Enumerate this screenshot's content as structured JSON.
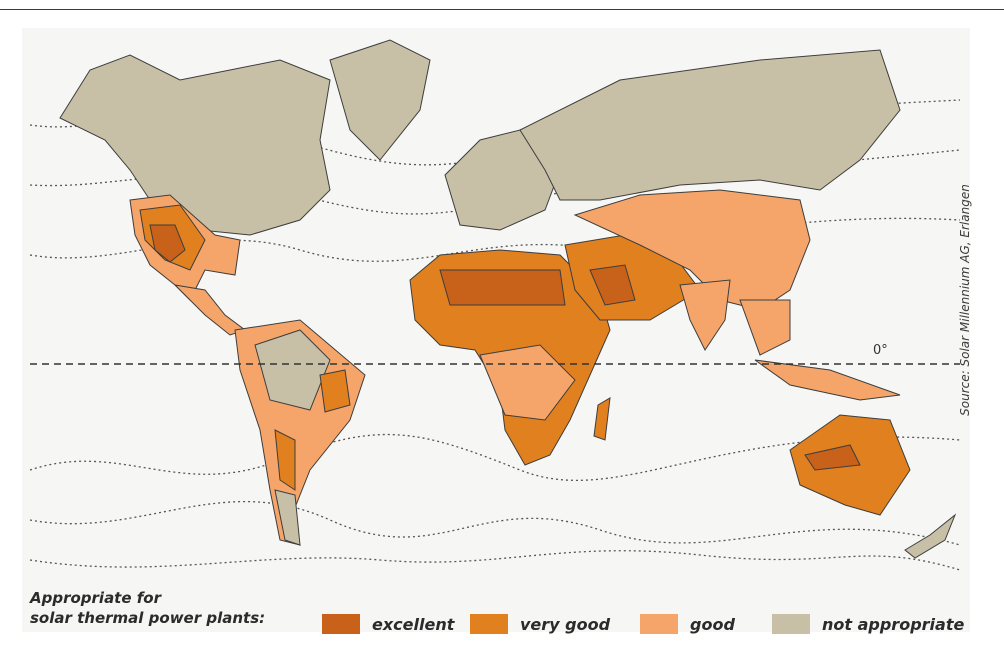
{
  "source_credit": "Source: Solar Millennium AG, Erlangen",
  "equator_label": "0°",
  "legend": {
    "title_line1": "Appropriate for",
    "title_line2": "solar thermal power plants:",
    "items": [
      {
        "label": "excellent",
        "color": "#c8611a"
      },
      {
        "label": "very good",
        "color": "#e0801f"
      },
      {
        "label": "good",
        "color": "#f5a56a"
      },
      {
        "label": "not appropriate",
        "color": "#c8c0a6"
      }
    ]
  },
  "colors": {
    "ocean": "#f6f6f4",
    "border": "#3d3d3d",
    "dotted_lines": "#555555"
  }
}
